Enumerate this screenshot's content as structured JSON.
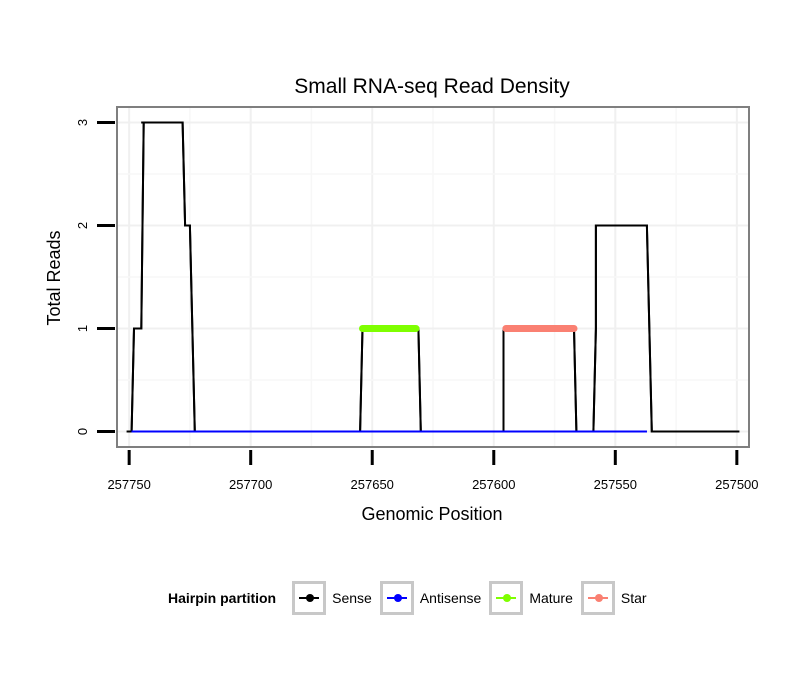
{
  "chart_data": {
    "type": "line",
    "title": "Small RNA-seq Read Density",
    "xlabel": "Genomic Position",
    "ylabel": "Total Reads",
    "xlim": [
      257755,
      257495
    ],
    "ylim": [
      -0.15,
      3.15
    ],
    "x_reversed": true,
    "xticks": [
      257750,
      257700,
      257650,
      257600,
      257550,
      257500
    ],
    "yticks": [
      0,
      1,
      2,
      3
    ],
    "grid": true,
    "legend_title": "Hairpin partition",
    "legend_position": "bottom",
    "series": [
      {
        "name": "Sense",
        "color": "#000000",
        "x": [
          257751,
          257749,
          257748,
          257745,
          257744,
          257745,
          257728,
          257727,
          257726,
          257725,
          257723,
          257655,
          257654,
          257654,
          257631,
          257631,
          257630,
          257596,
          257596,
          257595,
          257567,
          257566,
          257564,
          257559,
          257558,
          257558,
          257558,
          257538,
          257537,
          257535,
          257499
        ],
        "y": [
          0,
          0,
          1,
          1,
          3,
          3,
          3,
          2,
          2,
          2,
          0,
          0,
          1,
          1,
          1,
          1,
          0,
          0,
          1,
          1,
          1,
          0,
          0,
          0,
          1,
          1,
          2,
          2,
          2,
          0,
          0
        ]
      },
      {
        "name": "Antisense",
        "color": "#0000ff",
        "x": [
          257749,
          257725,
          257655,
          257631,
          257596,
          257567,
          257559,
          257537
        ],
        "y": [
          0,
          0,
          0,
          0,
          0,
          0,
          0,
          0
        ]
      },
      {
        "name": "Mature",
        "color": "#7fff00",
        "x": [
          257654,
          257632
        ],
        "y": [
          1,
          1
        ]
      },
      {
        "name": "Star",
        "color": "#fa8072",
        "x": [
          257595,
          257567
        ],
        "y": [
          1,
          1
        ]
      }
    ]
  }
}
